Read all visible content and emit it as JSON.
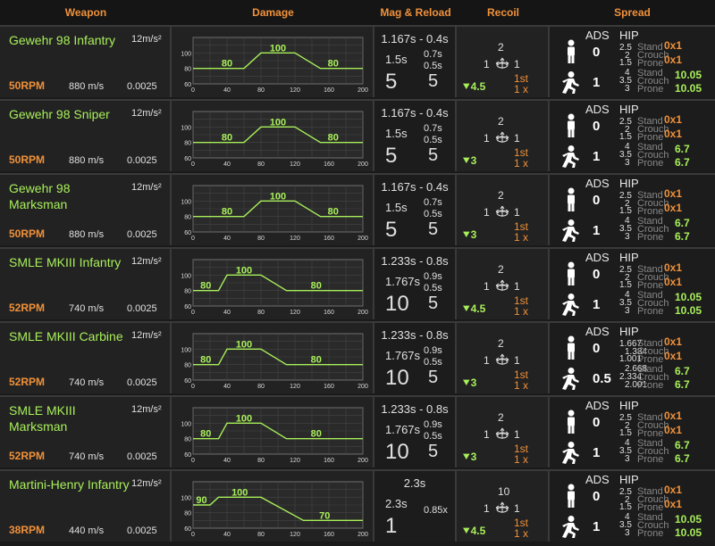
{
  "headers": [
    "Weapon",
    "Damage",
    "Mag & Reload",
    "Recoil",
    "Spread"
  ],
  "stance_labels": [
    "Stand",
    "Crouch",
    "Prone"
  ],
  "spread_headers": {
    "ads": "ADS",
    "hip": "HIP"
  },
  "weapons": [
    {
      "name": "Gewehr 98 Infantry",
      "accel": "12m/s²",
      "rpm": "50RPM",
      "velocity": "880 m/s",
      "drag": "0.0025",
      "damage": {
        "labels": [
          "100",
          "80",
          "80"
        ],
        "points": [
          [
            0,
            80
          ],
          [
            60,
            80
          ],
          [
            80,
            100
          ],
          [
            120,
            100
          ],
          [
            150,
            80
          ],
          [
            200,
            80
          ]
        ]
      },
      "mag": {
        "top": "1.167s - 0.4s",
        "mid": "1.5s",
        "s1": "0.7s",
        "s2": "0.5s",
        "big1": "5",
        "big2": "5"
      },
      "recoil": {
        "up": "2",
        "left": "1",
        "right": "1",
        "dec": "4.5",
        "first": "1st",
        "mult": "1 x"
      },
      "spread": {
        "ads_stand": "0",
        "ads_move": "1",
        "stand_vals": [
          "2.5",
          "2",
          "1.5"
        ],
        "move_vals": [
          "4",
          "3.5",
          "3"
        ],
        "stand_hip": [
          "0x1",
          "0x1"
        ],
        "move_hip": [
          "10.05",
          "10.05"
        ]
      }
    },
    {
      "name": "Gewehr 98 Sniper",
      "accel": "12m/s²",
      "rpm": "50RPM",
      "velocity": "880 m/s",
      "drag": "0.0025",
      "damage": {
        "labels": [
          "100",
          "80",
          "80"
        ],
        "points": [
          [
            0,
            80
          ],
          [
            60,
            80
          ],
          [
            80,
            100
          ],
          [
            120,
            100
          ],
          [
            150,
            80
          ],
          [
            200,
            80
          ]
        ]
      },
      "mag": {
        "top": "1.167s - 0.4s",
        "mid": "1.5s",
        "s1": "0.7s",
        "s2": "0.5s",
        "big1": "5",
        "big2": "5"
      },
      "recoil": {
        "up": "2",
        "left": "1",
        "right": "1",
        "dec": "3",
        "first": "1st",
        "mult": "1 x"
      },
      "spread": {
        "ads_stand": "0",
        "ads_move": "1",
        "stand_vals": [
          "2.5",
          "2",
          "1.5"
        ],
        "move_vals": [
          "4",
          "3.5",
          "3"
        ],
        "stand_hip": [
          "0x1",
          "0x1"
        ],
        "move_hip": [
          "6.7",
          "6.7"
        ]
      }
    },
    {
      "name": "Gewehr 98 Marksman",
      "accel": "12m/s²",
      "rpm": "50RPM",
      "velocity": "880 m/s",
      "drag": "0.0025",
      "damage": {
        "labels": [
          "100",
          "80",
          "80"
        ],
        "points": [
          [
            0,
            80
          ],
          [
            60,
            80
          ],
          [
            80,
            100
          ],
          [
            120,
            100
          ],
          [
            150,
            80
          ],
          [
            200,
            80
          ]
        ]
      },
      "mag": {
        "top": "1.167s - 0.4s",
        "mid": "1.5s",
        "s1": "0.7s",
        "s2": "0.5s",
        "big1": "5",
        "big2": "5"
      },
      "recoil": {
        "up": "2",
        "left": "1",
        "right": "1",
        "dec": "3",
        "first": "1st",
        "mult": "1 x"
      },
      "spread": {
        "ads_stand": "0",
        "ads_move": "1",
        "stand_vals": [
          "2.5",
          "2",
          "1.5"
        ],
        "move_vals": [
          "4",
          "3.5",
          "3"
        ],
        "stand_hip": [
          "0x1",
          "0x1"
        ],
        "move_hip": [
          "6.7",
          "6.7"
        ]
      }
    },
    {
      "name": "SMLE MKIII Infantry",
      "accel": "12m/s²",
      "rpm": "52RPM",
      "velocity": "740 m/s",
      "drag": "0.0025",
      "damage": {
        "labels": [
          "100",
          "80",
          "80"
        ],
        "points": [
          [
            0,
            80
          ],
          [
            30,
            80
          ],
          [
            40,
            100
          ],
          [
            80,
            100
          ],
          [
            110,
            80
          ],
          [
            200,
            80
          ]
        ]
      },
      "mag": {
        "top": "1.233s - 0.8s",
        "mid": "1.767s",
        "s1": "0.9s",
        "s2": "0.5s",
        "big1": "10",
        "big2": "5"
      },
      "recoil": {
        "up": "2",
        "left": "1",
        "right": "1",
        "dec": "4.5",
        "first": "1st",
        "mult": "1 x"
      },
      "spread": {
        "ads_stand": "0",
        "ads_move": "1",
        "stand_vals": [
          "2.5",
          "2",
          "1.5"
        ],
        "move_vals": [
          "4",
          "3.5",
          "3"
        ],
        "stand_hip": [
          "0x1",
          "0x1"
        ],
        "move_hip": [
          "10.05",
          "10.05"
        ]
      }
    },
    {
      "name": "SMLE MKIII Carbine",
      "accel": "12m/s²",
      "rpm": "52RPM",
      "velocity": "740 m/s",
      "drag": "0.0025",
      "damage": {
        "labels": [
          "100",
          "80",
          "80"
        ],
        "points": [
          [
            0,
            80
          ],
          [
            30,
            80
          ],
          [
            40,
            100
          ],
          [
            80,
            100
          ],
          [
            110,
            80
          ],
          [
            200,
            80
          ]
        ]
      },
      "mag": {
        "top": "1.233s - 0.8s",
        "mid": "1.767s",
        "s1": "0.9s",
        "s2": "0.5s",
        "big1": "10",
        "big2": "5"
      },
      "recoil": {
        "up": "2",
        "left": "1",
        "right": "1",
        "dec": "3",
        "first": "1st",
        "mult": "1 x"
      },
      "spread": {
        "ads_stand": "0",
        "ads_move": "0.5",
        "stand_vals": [
          "1.667",
          "1.334",
          "1.001"
        ],
        "move_vals": [
          "2.668",
          "2.334",
          "2.001"
        ],
        "stand_hip": [
          "0x1",
          "0x1"
        ],
        "move_hip": [
          "6.7",
          "6.7"
        ]
      }
    },
    {
      "name": "SMLE MKIII Marksman",
      "accel": "12m/s²",
      "rpm": "52RPM",
      "velocity": "740 m/s",
      "drag": "0.0025",
      "damage": {
        "labels": [
          "100",
          "80",
          "80"
        ],
        "points": [
          [
            0,
            80
          ],
          [
            30,
            80
          ],
          [
            40,
            100
          ],
          [
            80,
            100
          ],
          [
            110,
            80
          ],
          [
            200,
            80
          ]
        ]
      },
      "mag": {
        "top": "1.233s - 0.8s",
        "mid": "1.767s",
        "s1": "0.9s",
        "s2": "0.5s",
        "big1": "10",
        "big2": "5"
      },
      "recoil": {
        "up": "2",
        "left": "1",
        "right": "1",
        "dec": "3",
        "first": "1st",
        "mult": "1 x"
      },
      "spread": {
        "ads_stand": "0",
        "ads_move": "1",
        "stand_vals": [
          "2.5",
          "2",
          "1.5"
        ],
        "move_vals": [
          "4",
          "3.5",
          "3"
        ],
        "stand_hip": [
          "0x1",
          "0x1"
        ],
        "move_hip": [
          "6.7",
          "6.7"
        ]
      }
    },
    {
      "name": "Martini-Henry Infantry",
      "accel": "12m/s²",
      "rpm": "38RPM",
      "velocity": "440 m/s",
      "drag": "0.0025",
      "damage": {
        "labels": [
          "100",
          "90",
          "70"
        ],
        "points": [
          [
            0,
            90
          ],
          [
            20,
            90
          ],
          [
            30,
            100
          ],
          [
            80,
            100
          ],
          [
            130,
            70
          ],
          [
            200,
            70
          ]
        ]
      },
      "mag": {
        "top": "2.3s",
        "mid": "2.3s",
        "s1": "",
        "s2": "0.85x",
        "big1": "1",
        "big2": ""
      },
      "recoil": {
        "up": "10",
        "left": "1",
        "right": "1",
        "dec": "4.5",
        "first": "1st",
        "mult": "1 x"
      },
      "spread": {
        "ads_stand": "0",
        "ads_move": "1",
        "stand_vals": [
          "2.5",
          "2",
          "1.5"
        ],
        "move_vals": [
          "4",
          "3.5",
          "3"
        ],
        "stand_hip": [
          "0x1",
          "0x1"
        ],
        "move_hip": [
          "10.05",
          "10.05"
        ]
      }
    }
  ],
  "chart_axes": {
    "x_ticks": [
      "0",
      "40",
      "80",
      "120",
      "160",
      "200"
    ],
    "y_ticks": [
      "100",
      "80",
      "60"
    ],
    "xlim": [
      0,
      200
    ],
    "ylim": [
      60,
      120
    ]
  }
}
